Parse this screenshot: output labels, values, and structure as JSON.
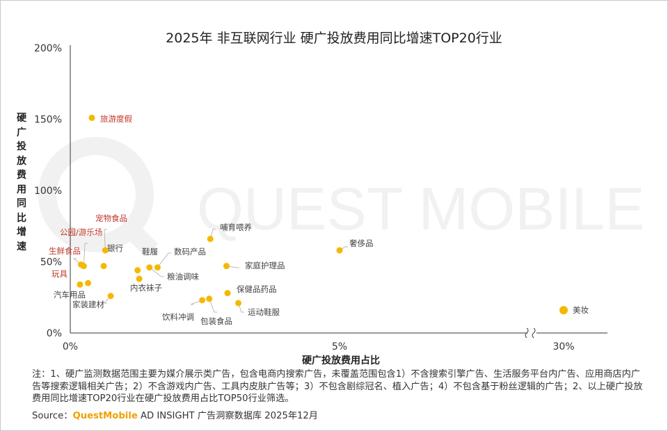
{
  "title": "2025年 非互联网行业 硬广投放费用同比增速TOP20行业",
  "chart_data": {
    "type": "scatter",
    "title": "2025年 非互联网行业 硬广投放费用同比增速TOP20行业",
    "xlabel": "硬广投放费用占比",
    "ylabel": "硬广投放费用同比增速",
    "y_ticks": [
      "200%",
      "150%",
      "100%",
      "50%",
      "0%"
    ],
    "y_tick_values": [
      200,
      150,
      100,
      50,
      0
    ],
    "x_ticks": [
      "0%",
      "5%",
      "30%"
    ],
    "x_axis_break": "between 5% and 30%",
    "ylim": [
      0,
      200
    ],
    "colors": {
      "point": "#F5B800",
      "highlight_label": "#C0392B",
      "normal_label": "#444444",
      "leader": "#BBBBBB"
    },
    "points": [
      {
        "name": "旅游度假",
        "x": 0.4,
        "y": 151,
        "highlight": true
      },
      {
        "name": "宠物食品",
        "x": 0.65,
        "y": 58,
        "highlight": true
      },
      {
        "name": "公园/游乐场",
        "x": 0.25,
        "y": 47,
        "highlight": true
      },
      {
        "name": "生鲜食品",
        "x": 0.2,
        "y": 48,
        "highlight": true
      },
      {
        "name": "玩具",
        "x": 0.18,
        "y": 34,
        "highlight": true
      },
      {
        "name": "银行",
        "x": 0.62,
        "y": 47,
        "highlight": false
      },
      {
        "name": "汽车用品",
        "x": 0.33,
        "y": 35,
        "highlight": false
      },
      {
        "name": "家装建材",
        "x": 0.75,
        "y": 26,
        "highlight": false
      },
      {
        "name": "鞋履",
        "x": 1.25,
        "y": 44,
        "highlight": false
      },
      {
        "name": "内衣袜子",
        "x": 1.28,
        "y": 38,
        "highlight": false
      },
      {
        "name": "数码产品",
        "x": 1.62,
        "y": 46,
        "highlight": false
      },
      {
        "name": "粮油调味",
        "x": 1.47,
        "y": 46,
        "highlight": false
      },
      {
        "name": "哺育喂养",
        "x": 2.6,
        "y": 66,
        "highlight": false
      },
      {
        "name": "家庭护理品",
        "x": 2.9,
        "y": 47,
        "highlight": false
      },
      {
        "name": "保健品药品",
        "x": 2.92,
        "y": 28,
        "highlight": false
      },
      {
        "name": "饮料冲调",
        "x": 2.45,
        "y": 23,
        "highlight": false
      },
      {
        "name": "包装食品",
        "x": 2.58,
        "y": 24,
        "highlight": false
      },
      {
        "name": "运动鞋服",
        "x": 3.12,
        "y": 21,
        "highlight": false
      },
      {
        "name": "奢侈品",
        "x": 5.0,
        "y": 58,
        "highlight": false
      },
      {
        "name": "美妆",
        "x": 30.0,
        "y": 16,
        "highlight": false
      }
    ]
  },
  "watermark": "QUEST MOBILE",
  "notes": "注：1、硬广监测数据范围主要为媒介展示类广告，包含电商内搜索广告，未覆盖范围包含1）不含搜索引擎广告、生活服务平台内广告、应用商店内广告等搜索逻辑相关广告；2）不含游戏内广告、工具内皮肤广告等；3）不包含剧综冠名、植入广告；4）不包含基于粉丝逻辑的广告；2、以上硬广投放费用同比增速TOP20行业在硬广投放费用占比TOP50行业筛选。",
  "source": {
    "prefix": "Source：",
    "brand": "QuestMobile",
    "rest": " AD INSIGHT 广告洞察数据库 2025年12月"
  }
}
